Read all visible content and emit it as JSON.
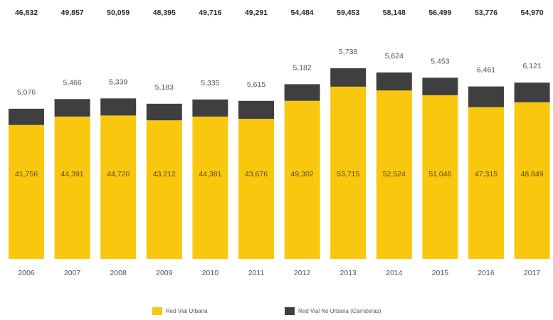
{
  "colors": {
    "urbana": "#F9C80E",
    "no_urbana": "#3F3F3F",
    "total_text": "#2b2b2b",
    "label_text": "#555555",
    "inner_text": "#5a4a12"
  },
  "legend": {
    "urbana": "Red Vial Urbana",
    "no_urbana": "Red Vial No Urbana (Carreteras)"
  },
  "chart_data": {
    "type": "bar",
    "stacked": true,
    "title": "",
    "xlabel": "",
    "ylabel": "",
    "categories": [
      "2006",
      "2007",
      "2008",
      "2009",
      "2010",
      "2011",
      "2012",
      "2013",
      "2014",
      "2015",
      "2016",
      "2017"
    ],
    "series": [
      {
        "name": "Red Vial Urbana",
        "values": [
          41756,
          44391,
          44720,
          43212,
          44381,
          43676,
          49302,
          53715,
          52524,
          51046,
          47315,
          48849
        ],
        "labels": [
          "41,756",
          "44,391",
          "44,720",
          "43,212",
          "44,381",
          "43,676",
          "49,302",
          "53,715",
          "52,524",
          "51,046",
          "47,315",
          "48,849"
        ]
      },
      {
        "name": "Red Vial No Urbana (Carreteras)",
        "values": [
          5076,
          5466,
          5339,
          5183,
          5335,
          5615,
          5182,
          5738,
          5624,
          5453,
          6461,
          6121
        ],
        "labels": [
          "5,076",
          "5,466",
          "5,339",
          "5,183",
          "5,335",
          "5,615",
          "5,182",
          "5,738",
          "5,624",
          "5,453",
          "6,461",
          "6,121"
        ]
      }
    ],
    "totals": [
      46832,
      49857,
      50059,
      48395,
      49716,
      49291,
      54484,
      59453,
      58148,
      56499,
      53776,
      54970
    ],
    "total_labels": [
      "46,832",
      "49,857",
      "50,059",
      "48,395",
      "49,716",
      "49,291",
      "54,484",
      "59,453",
      "58,148",
      "56,499",
      "53,776",
      "54,970"
    ],
    "ylim": [
      0,
      59453
    ],
    "grid": false,
    "legend_position": "bottom"
  }
}
